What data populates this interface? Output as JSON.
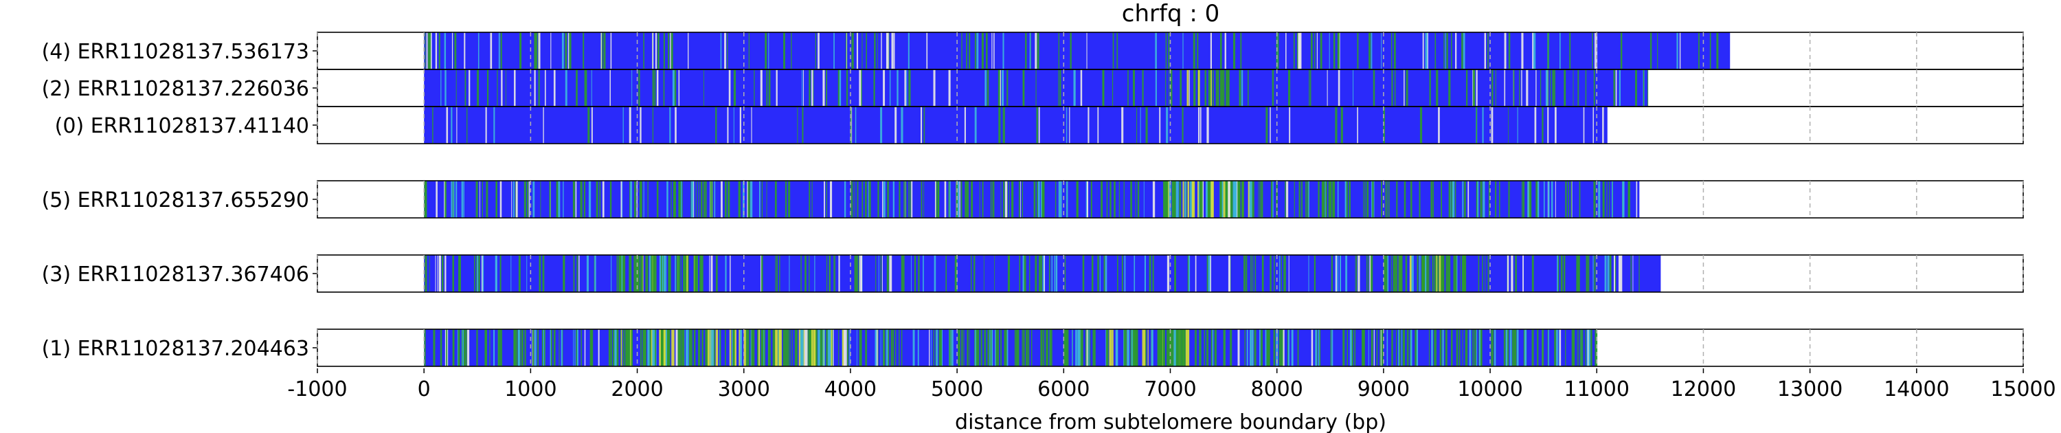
{
  "chart_data": {
    "type": "bar",
    "title": "chrfq : 0",
    "xlabel": "distance from subtelomere boundary (bp)",
    "ylabel": "",
    "xlim": [
      -1000,
      15000
    ],
    "xticks": [
      "-1000",
      "0",
      "1000",
      "2000",
      "3000",
      "4000",
      "5000",
      "6000",
      "7000",
      "8000",
      "9000",
      "10000",
      "11000",
      "12000",
      "13000",
      "14000",
      "15000"
    ],
    "grid": "vertical dashed",
    "colors": {
      "base": "#2a2afa",
      "green": "#2e9a2e",
      "yellow": "#d6dc3a",
      "cyan": "#3cb4dc",
      "light": "#e6e6e6",
      "edge": "#000000",
      "grid": "#b0b0b0"
    },
    "reads": [
      {
        "label": "(4) ERR11028137.536173",
        "start": 0,
        "end": 12250,
        "green_density": 0.1,
        "bright_spots": []
      },
      {
        "label": "(2) ERR11028137.226036",
        "start": 0,
        "end": 11480,
        "green_density": 0.12,
        "bright_spots": [
          [
            7150,
            7550
          ]
        ]
      },
      {
        "label": "(0) ERR11028137.41140",
        "start": 0,
        "end": 11100,
        "green_density": 0.04,
        "bright_spots": []
      },
      {
        "label": "(5) ERR11028137.655290",
        "start": 0,
        "end": 11400,
        "green_density": 0.28,
        "bright_spots": [
          [
            6900,
            7800
          ]
        ]
      },
      {
        "label": "(3) ERR11028137.367406",
        "start": 0,
        "end": 11600,
        "green_density": 0.18,
        "bright_spots": [
          [
            1800,
            2600
          ],
          [
            9000,
            9800
          ]
        ]
      },
      {
        "label": "(1) ERR11028137.204463",
        "start": 0,
        "end": 11000,
        "green_density": 0.45,
        "bright_spots": [
          [
            1800,
            4000
          ],
          [
            6100,
            7200
          ]
        ]
      }
    ]
  }
}
